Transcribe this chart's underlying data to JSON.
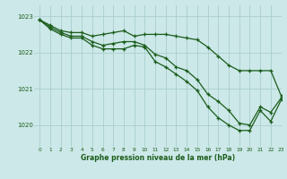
{
  "title": "Graphe pression niveau de la mer (hPa)",
  "background_color": "#cce8e8",
  "grid_color": "#aacece",
  "line_color": "#1a5c1a",
  "xlim": [
    -0.5,
    23
  ],
  "ylim": [
    1019.4,
    1023.3
  ],
  "yticks": [
    1020,
    1021,
    1022,
    1023
  ],
  "xticks": [
    0,
    1,
    2,
    3,
    4,
    5,
    6,
    7,
    8,
    9,
    10,
    11,
    12,
    13,
    14,
    15,
    16,
    17,
    18,
    19,
    20,
    21,
    22,
    23
  ],
  "line1": [
    1022.9,
    1022.75,
    1022.6,
    1022.55,
    1022.55,
    1022.45,
    1022.5,
    1022.55,
    1022.6,
    1022.45,
    1022.5,
    1022.5,
    1022.5,
    1022.45,
    1022.4,
    1022.35,
    1022.15,
    1021.9,
    1021.65,
    1021.5,
    1021.5,
    1021.5,
    1021.5,
    1020.8
  ],
  "line2": [
    1022.9,
    1022.7,
    1022.55,
    1022.45,
    1022.45,
    1022.3,
    1022.2,
    1022.25,
    1022.3,
    1022.3,
    1022.2,
    1021.95,
    1021.85,
    1021.6,
    1021.5,
    1021.25,
    1020.85,
    1020.65,
    1020.4,
    1020.05,
    1020.0,
    1020.5,
    1020.35,
    1020.75
  ],
  "line3": [
    1022.9,
    1022.65,
    1022.5,
    1022.4,
    1022.4,
    1022.2,
    1022.1,
    1022.1,
    1022.1,
    1022.2,
    1022.15,
    1021.75,
    1021.6,
    1021.4,
    1021.2,
    1020.95,
    1020.5,
    1020.2,
    1020.0,
    1019.85,
    1019.85,
    1020.4,
    1020.1,
    1020.7
  ]
}
